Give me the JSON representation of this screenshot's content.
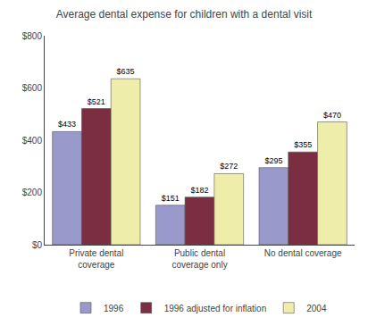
{
  "chart_data": {
    "type": "bar",
    "title": "Average dental expense for children with a dental visit",
    "categories": [
      "Private dental\ncoverage",
      "Public dental\ncoverage only",
      "No dental coverage"
    ],
    "series": [
      {
        "name": "1996",
        "color": "#9999CC",
        "values": [
          433,
          151,
          295
        ],
        "value_labels": [
          "$433",
          "$151",
          "$295"
        ]
      },
      {
        "name": "1996 adjusted for inflation",
        "color": "#7B2D42",
        "values": [
          521,
          182,
          355
        ],
        "value_labels": [
          "$521",
          "$182",
          "$355"
        ]
      },
      {
        "name": "2004",
        "color": "#EEEEAA",
        "values": [
          635,
          272,
          470
        ],
        "value_labels": [
          "$635",
          "$272",
          "$470"
        ]
      }
    ],
    "ylim": [
      0,
      800
    ],
    "yticks": [
      {
        "value": 0,
        "label": "$0"
      },
      {
        "value": 200,
        "label": "$200"
      },
      {
        "value": 400,
        "label": "$400"
      },
      {
        "value": 600,
        "label": "$600"
      },
      {
        "value": 800,
        "label": "$800"
      }
    ],
    "grid": false,
    "legend": "bottom",
    "data_labels": true
  }
}
